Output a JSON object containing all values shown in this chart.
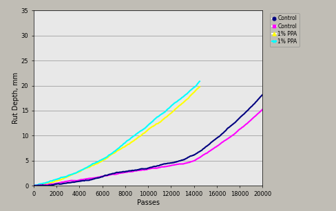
{
  "title": "",
  "xlabel": "Passes",
  "ylabel": "Rut Depth, mm",
  "xlim": [
    0,
    20000
  ],
  "ylim": [
    0,
    35
  ],
  "xticks": [
    0,
    2000,
    4000,
    6000,
    8000,
    10000,
    12000,
    14000,
    16000,
    18000,
    20000
  ],
  "yticks": [
    0,
    5,
    10,
    15,
    20,
    25,
    30,
    35
  ],
  "legend_labels": [
    "Control",
    "Control",
    "1% PPA",
    "1% PPA"
  ],
  "series_colors": [
    "#000080",
    "#ff00ff",
    "#ffff00",
    "#00ffff"
  ],
  "background_color": "#c0bdb5",
  "plot_bg_color": "#e8e8e8",
  "grid_color": "#aaaaaa",
  "figsize": [
    4.89,
    3.07
  ],
  "dpi": 100
}
